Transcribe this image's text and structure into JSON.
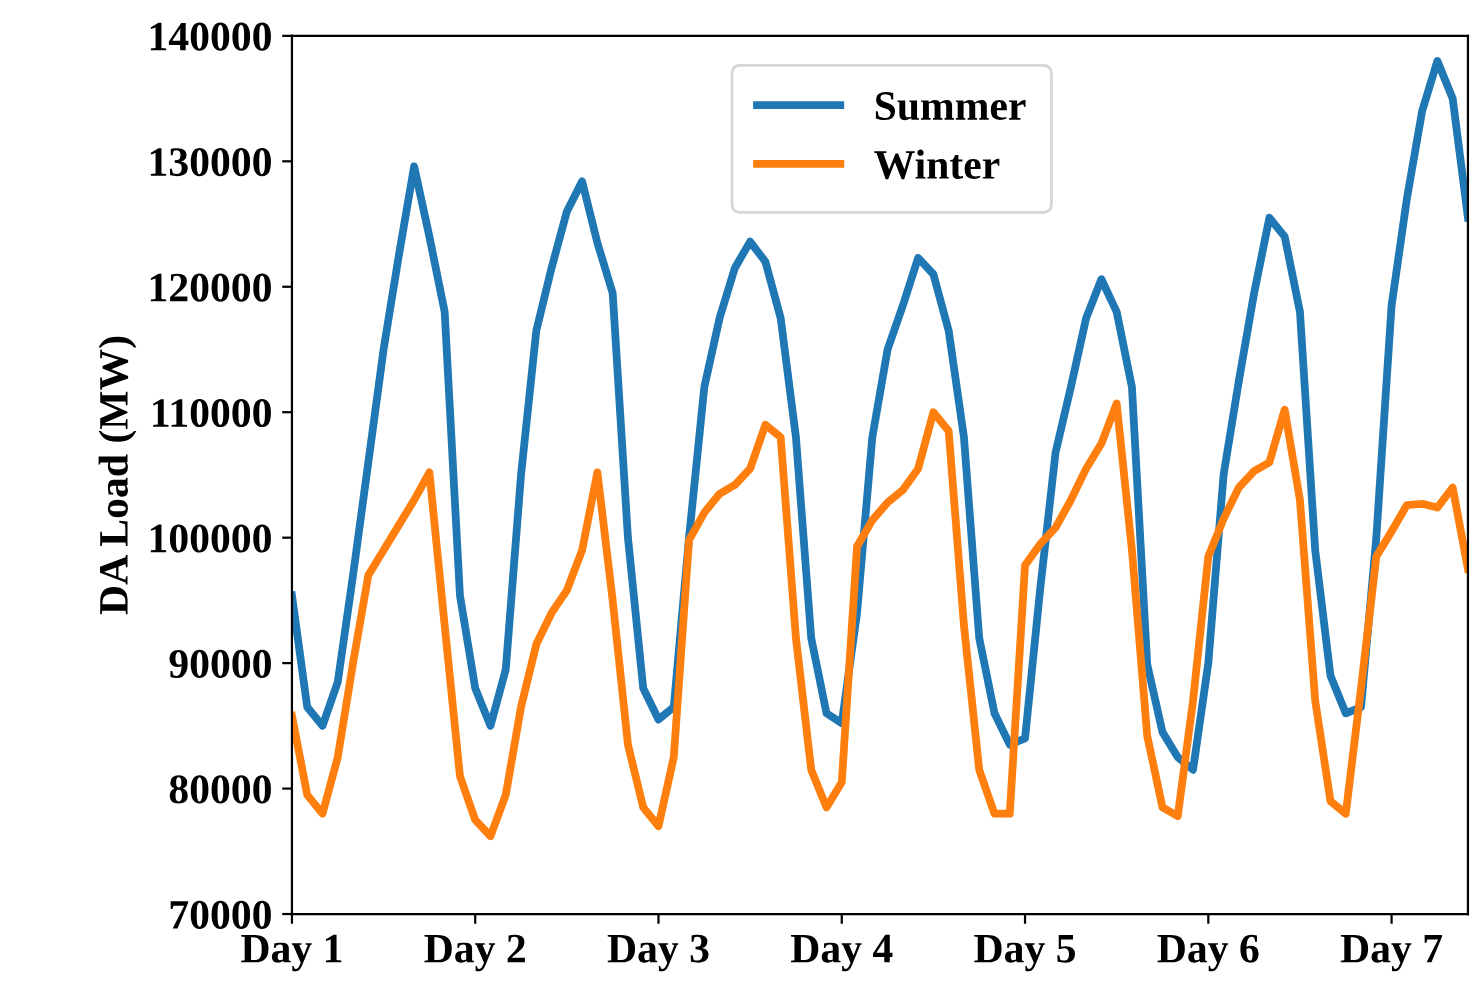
{
  "chart_data": {
    "type": "line",
    "ylabel": "DA Load (MW)",
    "categories": [
      "Day 1",
      null,
      null,
      null,
      null,
      null,
      null,
      null,
      null,
      null,
      null,
      null,
      "Day 2",
      null,
      null,
      null,
      null,
      null,
      null,
      null,
      null,
      null,
      null,
      null,
      "Day 3",
      null,
      null,
      null,
      null,
      null,
      null,
      null,
      null,
      null,
      null,
      null,
      "Day 4",
      null,
      null,
      null,
      null,
      null,
      null,
      null,
      null,
      null,
      null,
      null,
      "Day 5",
      null,
      null,
      null,
      null,
      null,
      null,
      null,
      null,
      null,
      null,
      null,
      "Day 6",
      null,
      null,
      null,
      null,
      null,
      null,
      null,
      null,
      null,
      null,
      null,
      "Day 7",
      null,
      null,
      null,
      null,
      null
    ],
    "ylim": [
      70000,
      140000
    ],
    "yticks": [
      70000,
      80000,
      90000,
      100000,
      110000,
      120000,
      130000,
      140000
    ],
    "grid": false,
    "legend": "top",
    "marker": "none",
    "line_style": "solid",
    "series": [
      {
        "name": "Summer",
        "color": "#1f77b4",
        "values": [
          95400,
          86500,
          85000,
          88500,
          97000,
          106000,
          115000,
          122500,
          129600,
          124000,
          118000,
          95400,
          88000,
          85000,
          89500,
          105000,
          116500,
          121500,
          126000,
          128400,
          123500,
          119500,
          100000,
          88000,
          85500,
          86500,
          100000,
          112000,
          117500,
          121500,
          123600,
          122000,
          117500,
          108000,
          92000,
          86000,
          85200,
          94000,
          108000,
          115000,
          118500,
          122300,
          121000,
          116500,
          108000,
          92000,
          86000,
          83500,
          84000,
          96000,
          106800,
          112000,
          117500,
          120600,
          118000,
          112000,
          89900,
          84500,
          82500,
          81500,
          90000,
          105000,
          112500,
          119500,
          125500,
          124000,
          118000,
          99000,
          89000,
          86000,
          86500,
          100000,
          118500,
          127000,
          134000,
          138000,
          135000,
          125500
        ]
      },
      {
        "name": "Winter",
        "color": "#ff7f0e",
        "values": [
          85800,
          79500,
          78000,
          82500,
          90000,
          97000,
          99000,
          101000,
          103000,
          105200,
          93000,
          81000,
          77500,
          76200,
          79500,
          86500,
          91500,
          94000,
          95800,
          99000,
          105200,
          95000,
          83500,
          78500,
          77000,
          82500,
          99800,
          102000,
          103500,
          104200,
          105500,
          109000,
          108000,
          92000,
          81500,
          78500,
          80500,
          99300,
          101400,
          102800,
          103800,
          105500,
          110000,
          108500,
          93000,
          81500,
          78000,
          78000,
          97800,
          99500,
          100800,
          103000,
          105500,
          107500,
          110700,
          99000,
          84200,
          78500,
          77800,
          87000,
          98500,
          101500,
          104000,
          105300,
          106000,
          110200,
          103000,
          87000,
          79000,
          78000,
          88000,
          98500,
          100500,
          102600,
          102700,
          102400,
          104000,
          97500
        ]
      }
    ]
  }
}
